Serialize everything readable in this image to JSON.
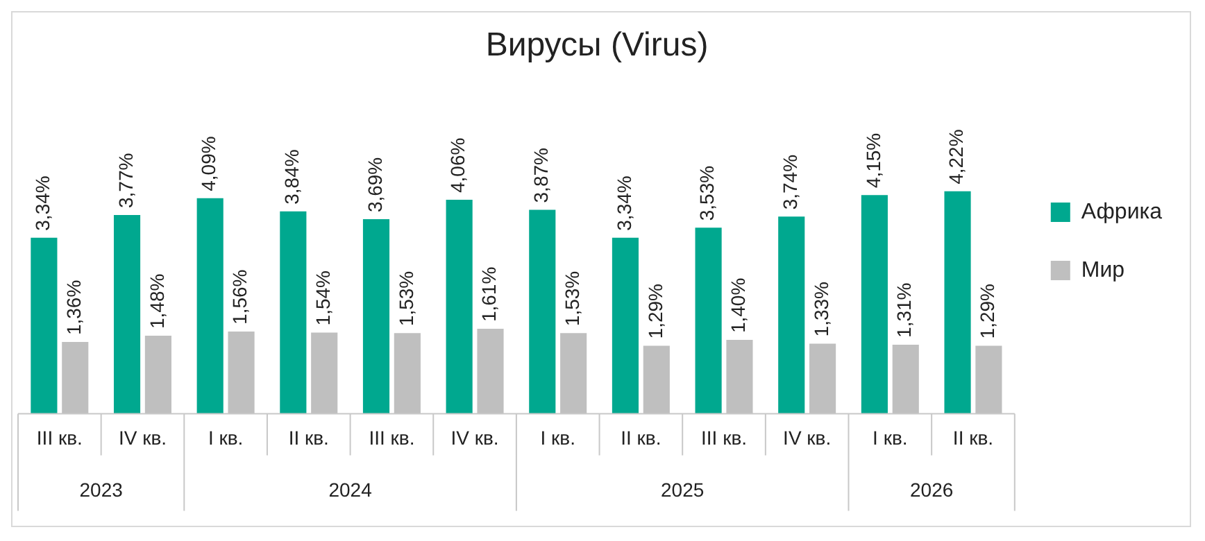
{
  "chart_data": {
    "type": "bar",
    "title": "Вирусы (Virus)",
    "categories": [
      "III кв.",
      "IV кв.",
      "I кв.",
      "II кв.",
      "III кв.",
      "IV кв.",
      "I кв.",
      "II кв.",
      "III кв.",
      "IV кв.",
      "I кв.",
      "II кв."
    ],
    "series": [
      {
        "name": "Африка",
        "color": "#00a88f",
        "values": [
          3.34,
          3.77,
          4.09,
          3.84,
          3.69,
          4.06,
          3.87,
          3.34,
          3.53,
          3.74,
          4.15,
          4.22
        ],
        "value_labels": [
          "3,34%",
          "3,77%",
          "4,09%",
          "3,84%",
          "3,69%",
          "4,06%",
          "3,87%",
          "3,34%",
          "3,53%",
          "3,74%",
          "4,15%",
          "4,22%"
        ]
      },
      {
        "name": "Мир",
        "color": "#bfbfbf",
        "values": [
          1.36,
          1.48,
          1.56,
          1.54,
          1.53,
          1.61,
          1.53,
          1.29,
          1.4,
          1.33,
          1.31,
          1.29
        ],
        "value_labels": [
          "1,36%",
          "1,48%",
          "1,56%",
          "1,54%",
          "1,53%",
          "1,61%",
          "1,53%",
          "1,29%",
          "1,40%",
          "1,33%",
          "1,31%",
          "1,29%"
        ]
      }
    ],
    "annotations": [
      "2023",
      "2024",
      "2025",
      "2026"
    ],
    "legend": "right",
    "grid": false
  }
}
